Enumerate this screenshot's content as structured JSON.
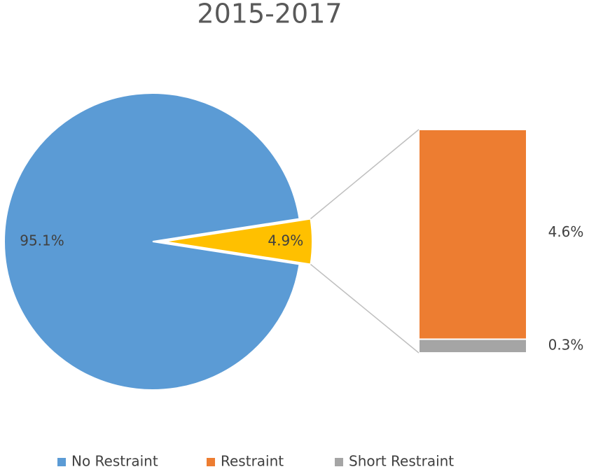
{
  "chart_data": {
    "type": "bar-of-pie",
    "title": "2015-2017",
    "pie": {
      "categories": [
        "No Restraint",
        null
      ],
      "values": [
        95.1,
        4.9
      ],
      "value_labels": [
        "95.1%",
        "4.9%"
      ],
      "colors": [
        "#5b9bd5",
        "#ffc000"
      ]
    },
    "bar": {
      "categories": [
        "Restraint",
        "Short Restraint"
      ],
      "values": [
        4.6,
        0.3
      ],
      "value_labels": [
        "4.6%",
        "0.3%"
      ],
      "colors": [
        "#ed7d31",
        "#a5a5a5"
      ]
    },
    "legend": "bottom"
  }
}
